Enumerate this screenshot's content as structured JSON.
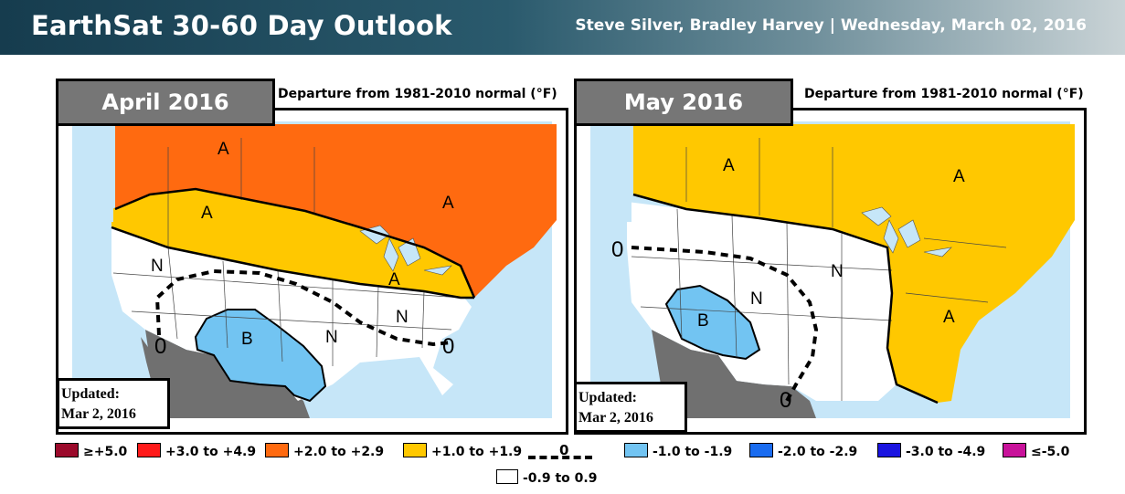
{
  "header": {
    "title": "EarthSat 30-60 Day Outlook",
    "authors": "Steve Silver, Bradley Harvey",
    "separator": "|",
    "date": "Wednesday, March 02, 2016"
  },
  "panels": [
    {
      "month": "April 2016",
      "subtitle": "Departure from 1981-2010 normal (°F)",
      "updated_line1": "Updated:",
      "updated_line2": "Mar 2, 2016",
      "region_labels": [
        "A",
        "A",
        "A",
        "N",
        "N",
        "N",
        "A",
        "B"
      ],
      "contour_labels": [
        "0",
        "0"
      ]
    },
    {
      "month": "May 2016",
      "subtitle": "Departure from 1981-2010 normal (°F)",
      "updated_line1": "Updated:",
      "updated_line2": "Mar 2, 2016",
      "region_labels": [
        "A",
        "A",
        "N",
        "N",
        "A",
        "B"
      ],
      "contour_labels": [
        "0",
        "0"
      ]
    }
  ],
  "legend": {
    "items": [
      {
        "label": "≥+5.0",
        "color": "#9b0a2b"
      },
      {
        "label": "+3.0 to +4.9",
        "color": "#ff1a1a"
      },
      {
        "label": "+2.0 to +2.9",
        "color": "#ff6a10"
      },
      {
        "label": "+1.0 to +1.9",
        "color": "#ffc800"
      },
      {
        "label": "-1.0 to -1.9",
        "color": "#72c4f2"
      },
      {
        "label": "-2.0 to -2.9",
        "color": "#1a6cf0"
      },
      {
        "label": "-3.0 to -4.9",
        "color": "#1a14e0"
      },
      {
        "label": "≤-5.0",
        "color": "#c8129a"
      }
    ],
    "zero_line_label": "0",
    "neutral_label": "-0.9 to 0.9"
  },
  "colors": {
    "ocean": "#c6e6f8",
    "mexico": "#707070",
    "outside": "#ffffff"
  }
}
